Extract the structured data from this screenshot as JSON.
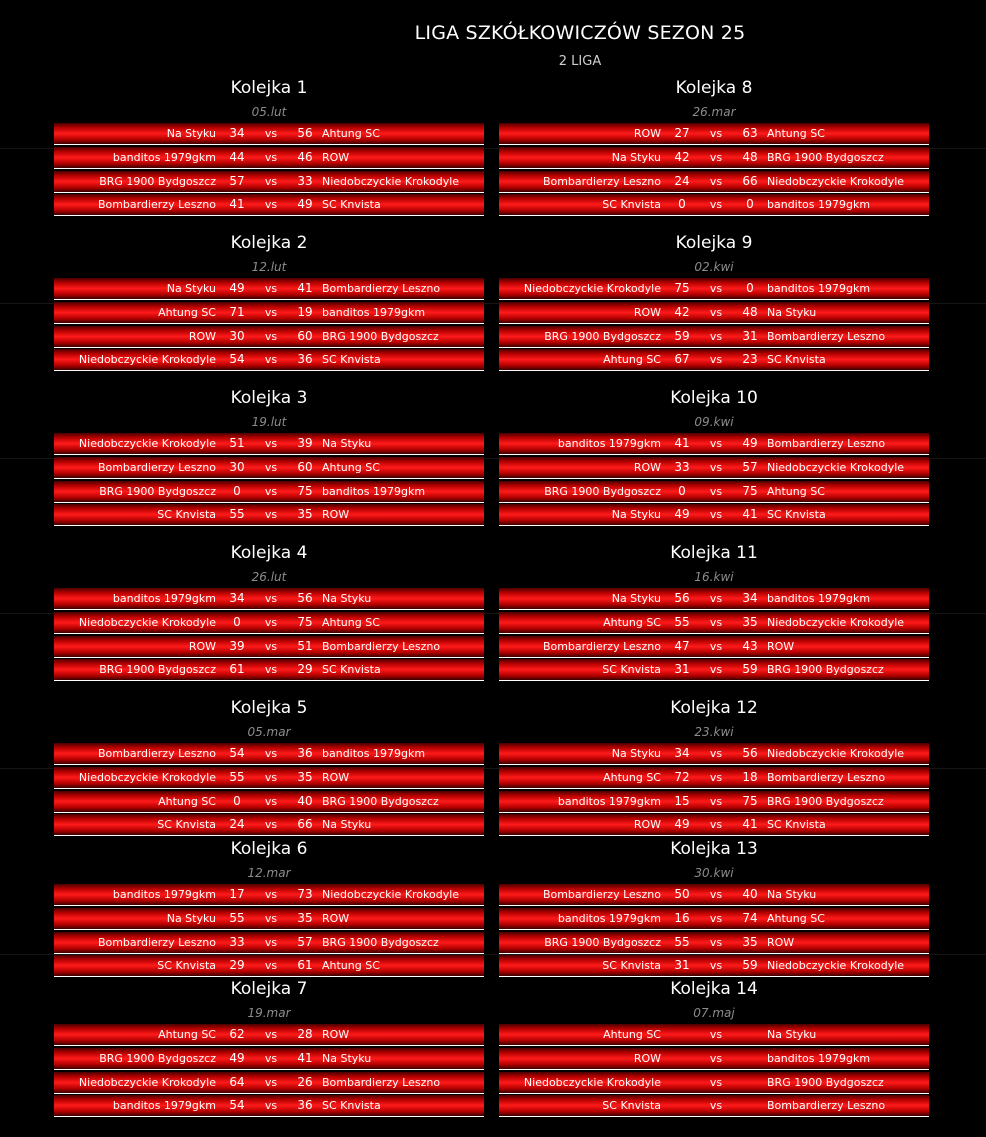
{
  "title": "LIGA SZKÓŁKOWICZÓW SEZON 25",
  "subtitle": "2 LIGA",
  "rounds": [
    {
      "name": "Kolejka 1",
      "date": "05.lut",
      "matches": [
        {
          "home": "Na Styku",
          "home_score": "34",
          "vs": "vs",
          "away_score": "56",
          "away": "Ahtung SC"
        },
        {
          "home": "banditos 1979gkm",
          "home_score": "44",
          "vs": "vs",
          "away_score": "46",
          "away": "ROW"
        },
        {
          "home": "BRG 1900 Bydgoszcz",
          "home_score": "57",
          "vs": "vs",
          "away_score": "33",
          "away": "Niedobczyckie Krokodyle"
        },
        {
          "home": "Bombardierzy Leszno",
          "home_score": "41",
          "vs": "vs",
          "away_score": "49",
          "away": "SC Knvista"
        }
      ]
    },
    {
      "name": "Kolejka 2",
      "date": "12.lut",
      "matches": [
        {
          "home": "Na Styku",
          "home_score": "49",
          "vs": "vs",
          "away_score": "41",
          "away": "Bombardierzy Leszno"
        },
        {
          "home": "Ahtung SC",
          "home_score": "71",
          "vs": "vs",
          "away_score": "19",
          "away": "banditos 1979gkm"
        },
        {
          "home": "ROW",
          "home_score": "30",
          "vs": "vs",
          "away_score": "60",
          "away": "BRG 1900 Bydgoszcz"
        },
        {
          "home": "Niedobczyckie Krokodyle",
          "home_score": "54",
          "vs": "vs",
          "away_score": "36",
          "away": "SC Knvista"
        }
      ]
    },
    {
      "name": "Kolejka 3",
      "date": "19.lut",
      "matches": [
        {
          "home": "Niedobczyckie Krokodyle",
          "home_score": "51",
          "vs": "vs",
          "away_score": "39",
          "away": "Na Styku"
        },
        {
          "home": "Bombardierzy Leszno",
          "home_score": "30",
          "vs": "vs",
          "away_score": "60",
          "away": "Ahtung SC"
        },
        {
          "home": "BRG 1900 Bydgoszcz",
          "home_score": "0",
          "vs": "vs",
          "away_score": "75",
          "away": "banditos 1979gkm"
        },
        {
          "home": "SC Knvista",
          "home_score": "55",
          "vs": "vs",
          "away_score": "35",
          "away": "ROW"
        }
      ]
    },
    {
      "name": "Kolejka 4",
      "date": "26.lut",
      "matches": [
        {
          "home": "banditos 1979gkm",
          "home_score": "34",
          "vs": "vs",
          "away_score": "56",
          "away": "Na Styku"
        },
        {
          "home": "Niedobczyckie Krokodyle",
          "home_score": "0",
          "vs": "vs",
          "away_score": "75",
          "away": "Ahtung SC"
        },
        {
          "home": "ROW",
          "home_score": "39",
          "vs": "vs",
          "away_score": "51",
          "away": "Bombardierzy Leszno"
        },
        {
          "home": "BRG 1900 Bydgoszcz",
          "home_score": "61",
          "vs": "vs",
          "away_score": "29",
          "away": "SC Knvista"
        }
      ]
    },
    {
      "name": "Kolejka 5",
      "date": "05.mar",
      "matches": [
        {
          "home": "Bombardierzy Leszno",
          "home_score": "54",
          "vs": "vs",
          "away_score": "36",
          "away": "banditos 1979gkm"
        },
        {
          "home": "Niedobczyckie Krokodyle",
          "home_score": "55",
          "vs": "vs",
          "away_score": "35",
          "away": "ROW"
        },
        {
          "home": "Ahtung SC",
          "home_score": "0",
          "vs": "vs",
          "away_score": "40",
          "away": "BRG 1900 Bydgoszcz"
        },
        {
          "home": "SC Knvista",
          "home_score": "24",
          "vs": "vs",
          "away_score": "66",
          "away": "Na Styku"
        }
      ]
    },
    {
      "name": "Kolejka 6",
      "date": "12.mar",
      "matches": [
        {
          "home": "banditos 1979gkm",
          "home_score": "17",
          "vs": "vs",
          "away_score": "73",
          "away": "Niedobczyckie Krokodyle"
        },
        {
          "home": "Na Styku",
          "home_score": "55",
          "vs": "vs",
          "away_score": "35",
          "away": "ROW"
        },
        {
          "home": "Bombardierzy Leszno",
          "home_score": "33",
          "vs": "vs",
          "away_score": "57",
          "away": "BRG 1900 Bydgoszcz"
        },
        {
          "home": "SC Knvista",
          "home_score": "29",
          "vs": "vs",
          "away_score": "61",
          "away": "Ahtung SC"
        }
      ]
    },
    {
      "name": "Kolejka 7",
      "date": "19.mar",
      "matches": [
        {
          "home": "Ahtung SC",
          "home_score": "62",
          "vs": "vs",
          "away_score": "28",
          "away": "ROW"
        },
        {
          "home": "BRG 1900 Bydgoszcz",
          "home_score": "49",
          "vs": "vs",
          "away_score": "41",
          "away": "Na Styku"
        },
        {
          "home": "Niedobczyckie Krokodyle",
          "home_score": "64",
          "vs": "vs",
          "away_score": "26",
          "away": "Bombardierzy Leszno"
        },
        {
          "home": "banditos 1979gkm",
          "home_score": "54",
          "vs": "vs",
          "away_score": "36",
          "away": "SC Knvista"
        }
      ]
    },
    {
      "name": "Kolejka 8",
      "date": "26.mar",
      "matches": [
        {
          "home": "ROW",
          "home_score": "27",
          "vs": "vs",
          "away_score": "63",
          "away": "Ahtung SC"
        },
        {
          "home": "Na Styku",
          "home_score": "42",
          "vs": "vs",
          "away_score": "48",
          "away": "BRG 1900 Bydgoszcz"
        },
        {
          "home": "Bombardierzy Leszno",
          "home_score": "24",
          "vs": "vs",
          "away_score": "66",
          "away": "Niedobczyckie Krokodyle"
        },
        {
          "home": "SC Knvista",
          "home_score": "0",
          "vs": "vs",
          "away_score": "0",
          "away": "banditos 1979gkm"
        }
      ]
    },
    {
      "name": "Kolejka 9",
      "date": "02.kwi",
      "matches": [
        {
          "home": "Niedobczyckie Krokodyle",
          "home_score": "75",
          "vs": "vs",
          "away_score": "0",
          "away": "banditos 1979gkm"
        },
        {
          "home": "ROW",
          "home_score": "42",
          "vs": "vs",
          "away_score": "48",
          "away": "Na Styku"
        },
        {
          "home": "BRG 1900 Bydgoszcz",
          "home_score": "59",
          "vs": "vs",
          "away_score": "31",
          "away": "Bombardierzy Leszno"
        },
        {
          "home": "Ahtung SC",
          "home_score": "67",
          "vs": "vs",
          "away_score": "23",
          "away": "SC Knvista"
        }
      ]
    },
    {
      "name": "Kolejka 10",
      "date": "09.kwi",
      "matches": [
        {
          "home": "banditos 1979gkm",
          "home_score": "41",
          "vs": "vs",
          "away_score": "49",
          "away": "Bombardierzy Leszno"
        },
        {
          "home": "ROW",
          "home_score": "33",
          "vs": "vs",
          "away_score": "57",
          "away": "Niedobczyckie Krokodyle"
        },
        {
          "home": "BRG 1900 Bydgoszcz",
          "home_score": "0",
          "vs": "vs",
          "away_score": "75",
          "away": "Ahtung SC"
        },
        {
          "home": "Na Styku",
          "home_score": "49",
          "vs": "vs",
          "away_score": "41",
          "away": "SC Knvista"
        }
      ]
    },
    {
      "name": "Kolejka 11",
      "date": "16.kwi",
      "matches": [
        {
          "home": "Na Styku",
          "home_score": "56",
          "vs": "vs",
          "away_score": "34",
          "away": "banditos 1979gkm"
        },
        {
          "home": "Ahtung SC",
          "home_score": "55",
          "vs": "vs",
          "away_score": "35",
          "away": "Niedobczyckie Krokodyle"
        },
        {
          "home": "Bombardierzy Leszno",
          "home_score": "47",
          "vs": "vs",
          "away_score": "43",
          "away": "ROW"
        },
        {
          "home": "SC Knvista",
          "home_score": "31",
          "vs": "vs",
          "away_score": "59",
          "away": "BRG 1900 Bydgoszcz"
        }
      ]
    },
    {
      "name": "Kolejka 12",
      "date": "23.kwi",
      "matches": [
        {
          "home": "Na Styku",
          "home_score": "34",
          "vs": "vs",
          "away_score": "56",
          "away": "Niedobczyckie Krokodyle"
        },
        {
          "home": "Ahtung SC",
          "home_score": "72",
          "vs": "vs",
          "away_score": "18",
          "away": "Bombardierzy Leszno"
        },
        {
          "home": "banditos 1979gkm",
          "home_score": "15",
          "vs": "vs",
          "away_score": "75",
          "away": "BRG 1900 Bydgoszcz"
        },
        {
          "home": "ROW",
          "home_score": "49",
          "vs": "vs",
          "away_score": "41",
          "away": "SC Knvista"
        }
      ]
    },
    {
      "name": "Kolejka 13",
      "date": "30.kwi",
      "matches": [
        {
          "home": "Bombardierzy Leszno",
          "home_score": "50",
          "vs": "vs",
          "away_score": "40",
          "away": "Na Styku"
        },
        {
          "home": "banditos 1979gkm",
          "home_score": "16",
          "vs": "vs",
          "away_score": "74",
          "away": "Ahtung SC"
        },
        {
          "home": "BRG 1900 Bydgoszcz",
          "home_score": "55",
          "vs": "vs",
          "away_score": "35",
          "away": "ROW"
        },
        {
          "home": "SC Knvista",
          "home_score": "31",
          "vs": "vs",
          "away_score": "59",
          "away": "Niedobczyckie Krokodyle"
        }
      ]
    },
    {
      "name": "Kolejka 14",
      "date": "07.maj",
      "matches": [
        {
          "home": "Ahtung SC",
          "home_score": "",
          "vs": "vs",
          "away_score": "",
          "away": "Na Styku"
        },
        {
          "home": "ROW",
          "home_score": "",
          "vs": "vs",
          "away_score": "",
          "away": "banditos 1979gkm"
        },
        {
          "home": "Niedobczyckie Krokodyle",
          "home_score": "",
          "vs": "vs",
          "away_score": "",
          "away": "BRG 1900 Bydgoszcz"
        },
        {
          "home": "SC Knvista",
          "home_score": "",
          "vs": "vs",
          "away_score": "",
          "away": "Bombardierzy Leszno"
        }
      ]
    }
  ]
}
